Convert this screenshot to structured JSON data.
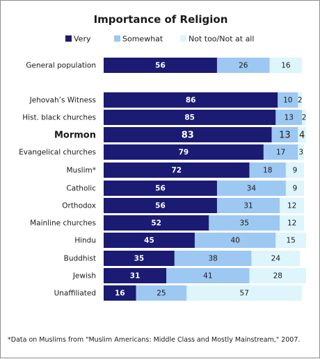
{
  "chart_data": {
    "type": "bar",
    "orientation": "horizontal",
    "stacked": true,
    "title": "Importance of Religion",
    "legend_position": "top",
    "categories": [
      "General population",
      "Jehovah’s Witness",
      "Hist. black churches",
      "Mormon",
      "Evangelical churches",
      "Muslim*",
      "Catholic",
      "Orthodox",
      "Mainline churches",
      "Hindu",
      "Buddhist",
      "Jewish",
      "Unaffiliated"
    ],
    "highlight_category": "Mormon",
    "series": [
      {
        "name": "Very",
        "color": "#1b1b73",
        "values": [
          56,
          86,
          85,
          83,
          79,
          72,
          56,
          56,
          52,
          45,
          35,
          31,
          16
        ]
      },
      {
        "name": "Somewhat",
        "color": "#9dc8f2",
        "values": [
          26,
          10,
          13,
          13,
          17,
          18,
          34,
          31,
          35,
          40,
          38,
          41,
          25
        ]
      },
      {
        "name": "Not too/Not at all",
        "color": "#ddf5fb",
        "values": [
          16,
          2,
          2,
          4,
          3,
          9,
          9,
          12,
          12,
          15,
          24,
          28,
          57
        ]
      }
    ],
    "xlim": [
      0,
      100
    ]
  },
  "footnote": "*Data on Muslims from \"Muslim Americans: Middle Class and Mostly Mainstream,\" 2007."
}
